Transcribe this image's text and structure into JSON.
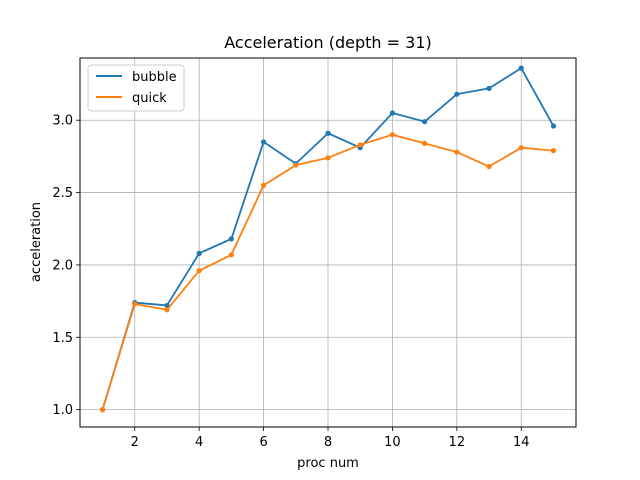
{
  "chart_data": {
    "type": "line",
    "title": "Acceleration (depth = 31)",
    "xlabel": "proc num",
    "ylabel": "acceleration",
    "x": [
      1,
      2,
      3,
      4,
      5,
      6,
      7,
      8,
      9,
      10,
      11,
      12,
      13,
      14,
      15
    ],
    "xlim": [
      0.3,
      15.7
    ],
    "ylim": [
      0.88,
      3.43
    ],
    "xticks": [
      2,
      4,
      6,
      8,
      10,
      12,
      14
    ],
    "yticks": [
      1.0,
      1.5,
      2.0,
      2.5,
      3.0
    ],
    "ytick_labels": [
      "1.0",
      "1.5",
      "2.0",
      "2.5",
      "3.0"
    ],
    "grid": true,
    "legend_position": "top-left",
    "series": [
      {
        "name": "bubble",
        "color": "#1f77b4",
        "values": [
          1.0,
          1.74,
          1.72,
          2.08,
          2.18,
          2.85,
          2.7,
          2.91,
          2.81,
          3.05,
          2.99,
          3.18,
          3.22,
          3.36,
          2.96
        ]
      },
      {
        "name": "quick",
        "color": "#ff7f0e",
        "values": [
          1.0,
          1.73,
          1.69,
          1.96,
          2.07,
          2.55,
          2.69,
          2.74,
          2.83,
          2.9,
          2.84,
          2.78,
          2.68,
          2.81,
          2.79
        ]
      }
    ]
  }
}
